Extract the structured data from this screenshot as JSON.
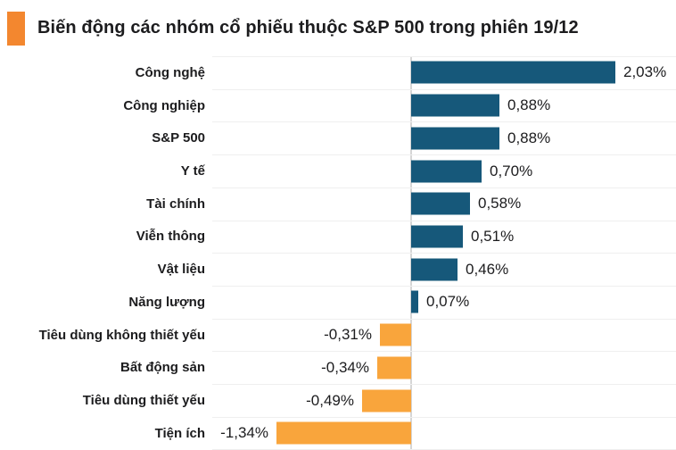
{
  "header": {
    "title": "Biến động các nhóm cổ phiếu thuộc S&P 500 trong phiên 19/12"
  },
  "colors": {
    "positive_bar": "#16587A",
    "negative_bar": "#F9A53C",
    "title_marker": "#F3872F",
    "zero_line": "#D6D6D6",
    "gridline": "#EFEFEF",
    "text": "#1C1C1E"
  },
  "chart_data": {
    "type": "bar",
    "orientation": "horizontal",
    "title": "Biến động các nhóm cổ phiếu thuộc S&P 500 trong phiên 19/12",
    "categories": [
      "Công nghệ",
      "Công nghiệp",
      "S&P 500",
      "Y tế",
      "Tài chính",
      "Viễn thông",
      "Vật liệu",
      "Năng lượng",
      "Tiêu dùng không thiết yếu",
      "Bất động sản",
      "Tiêu dùng thiết yếu",
      "Tiện ích"
    ],
    "values": [
      2.03,
      0.88,
      0.88,
      0.7,
      0.58,
      0.51,
      0.46,
      0.07,
      -0.31,
      -0.34,
      -0.49,
      -1.34
    ],
    "value_labels": [
      "2,03%",
      "0,88%",
      "0,88%",
      "0,70%",
      "0,58%",
      "0,51%",
      "0,46%",
      "0,07%",
      "-0,31%",
      "-0,34%",
      "-0,49%",
      "-1,34%"
    ],
    "unit": "%",
    "xlabel": "",
    "ylabel": "",
    "xlim": [
      -2.0,
      2.65
    ],
    "grid": "row-separators-only",
    "legend_position": "none",
    "zero_axis_line": true
  }
}
